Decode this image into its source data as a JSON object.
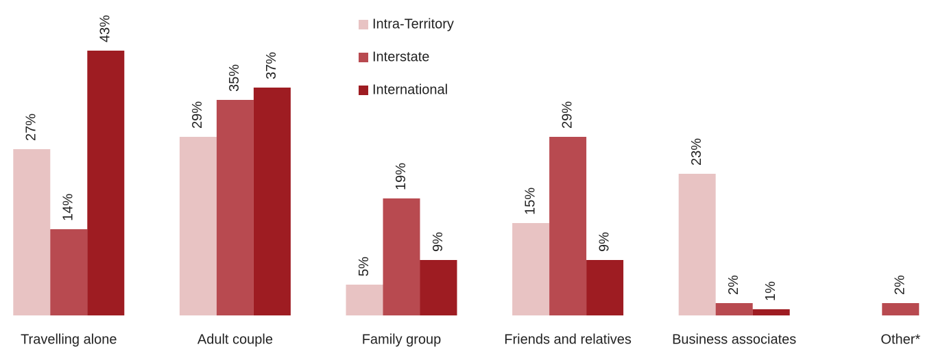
{
  "chart_data": {
    "type": "bar",
    "categories": [
      "Travelling alone",
      "Adult couple",
      "Family group",
      "Friends and relatives",
      "Business associates",
      "Other*"
    ],
    "series": [
      {
        "name": "Intra-Territory",
        "color": "#e8c3c3",
        "values": [
          27,
          29,
          5,
          15,
          23,
          null
        ],
        "value_labels": [
          "27%",
          "29%",
          "5%",
          "15%",
          "23%",
          null
        ]
      },
      {
        "name": "Interstate",
        "color": "#b84a50",
        "values": [
          14,
          35,
          19,
          29,
          2,
          2
        ],
        "value_labels": [
          "14%",
          "35%",
          "19%",
          "29%",
          "2%",
          "2%"
        ]
      },
      {
        "name": "International",
        "color": "#9e1c22",
        "values": [
          43,
          37,
          9,
          9,
          1,
          null
        ],
        "value_labels": [
          "43%",
          "37%",
          "9%",
          "9%",
          "1%",
          null
        ]
      }
    ],
    "legend": "top-center"
  }
}
